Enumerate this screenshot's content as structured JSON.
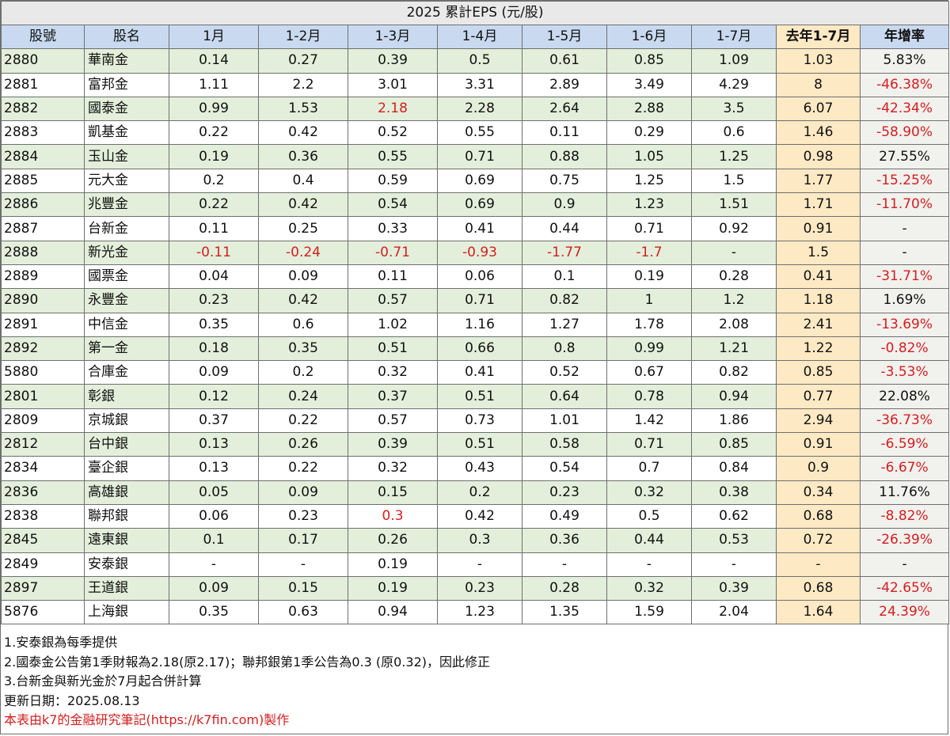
{
  "title": "2025 累計EPS (元/股)",
  "headers": [
    "股號",
    "股名",
    "1月",
    "1-2月",
    "1-3月",
    "1-4月",
    "1-5月",
    "1-6月",
    "1-7月",
    "去年1-7月",
    "年增率"
  ],
  "rows": [
    {
      "code": "2880",
      "name": "華南金",
      "cells": [
        "0.14",
        "0.27",
        "0.39",
        "0.5",
        "0.61",
        "0.85",
        "1.09"
      ],
      "last": "1.03",
      "growth": "5.83%"
    },
    {
      "code": "2881",
      "name": "富邦金",
      "cells": [
        "1.11",
        "2.2",
        "3.01",
        "3.31",
        "2.89",
        "3.49",
        "4.29"
      ],
      "last": "8",
      "growth": "-46.38%"
    },
    {
      "code": "2882",
      "name": "國泰金",
      "cells": [
        "0.99",
        "1.53",
        "2.18",
        "2.28",
        "2.64",
        "2.88",
        "3.5"
      ],
      "last": "6.07",
      "growth": "-42.34%",
      "red_cells": [
        2
      ]
    },
    {
      "code": "2883",
      "name": "凱基金",
      "cells": [
        "0.22",
        "0.42",
        "0.52",
        "0.55",
        "0.11",
        "0.29",
        "0.6"
      ],
      "last": "1.46",
      "growth": "-58.90%"
    },
    {
      "code": "2884",
      "name": "玉山金",
      "cells": [
        "0.19",
        "0.36",
        "0.55",
        "0.71",
        "0.88",
        "1.05",
        "1.25"
      ],
      "last": "0.98",
      "growth": "27.55%"
    },
    {
      "code": "2885",
      "name": "元大金",
      "cells": [
        "0.2",
        "0.4",
        "0.59",
        "0.69",
        "0.75",
        "1.25",
        "1.5"
      ],
      "last": "1.77",
      "growth": "-15.25%"
    },
    {
      "code": "2886",
      "name": "兆豐金",
      "cells": [
        "0.22",
        "0.42",
        "0.54",
        "0.69",
        "0.9",
        "1.23",
        "1.51"
      ],
      "last": "1.71",
      "growth": "-11.70%"
    },
    {
      "code": "2887",
      "name": "台新金",
      "cells": [
        "0.11",
        "0.25",
        "0.33",
        "0.41",
        "0.44",
        "0.71",
        "0.92"
      ],
      "last": "0.91",
      "growth": "-"
    },
    {
      "code": "2888",
      "name": "新光金",
      "cells": [
        "-0.11",
        "-0.24",
        "-0.71",
        "-0.93",
        "-1.77",
        "-1.7",
        "-"
      ],
      "last": "1.5",
      "growth": "-"
    },
    {
      "code": "2889",
      "name": "國票金",
      "cells": [
        "0.04",
        "0.09",
        "0.11",
        "0.06",
        "0.1",
        "0.19",
        "0.28"
      ],
      "last": "0.41",
      "growth": "-31.71%"
    },
    {
      "code": "2890",
      "name": "永豐金",
      "cells": [
        "0.23",
        "0.42",
        "0.57",
        "0.71",
        "0.82",
        "1",
        "1.2"
      ],
      "last": "1.18",
      "growth": "1.69%"
    },
    {
      "code": "2891",
      "name": "中信金",
      "cells": [
        "0.35",
        "0.6",
        "1.02",
        "1.16",
        "1.27",
        "1.78",
        "2.08"
      ],
      "last": "2.41",
      "growth": "-13.69%"
    },
    {
      "code": "2892",
      "name": "第一金",
      "cells": [
        "0.18",
        "0.35",
        "0.51",
        "0.66",
        "0.8",
        "0.99",
        "1.21"
      ],
      "last": "1.22",
      "growth": "-0.82%"
    },
    {
      "code": "5880",
      "name": "合庫金",
      "cells": [
        "0.09",
        "0.2",
        "0.32",
        "0.41",
        "0.52",
        "0.67",
        "0.82"
      ],
      "last": "0.85",
      "growth": "-3.53%"
    },
    {
      "code": "2801",
      "name": "彰銀",
      "cells": [
        "0.12",
        "0.24",
        "0.37",
        "0.51",
        "0.64",
        "0.78",
        "0.94"
      ],
      "last": "0.77",
      "growth": "22.08%"
    },
    {
      "code": "2809",
      "name": "京城銀",
      "cells": [
        "0.37",
        "0.22",
        "0.57",
        "0.73",
        "1.01",
        "1.42",
        "1.86"
      ],
      "last": "2.94",
      "growth": "-36.73%"
    },
    {
      "code": "2812",
      "name": "台中銀",
      "cells": [
        "0.13",
        "0.26",
        "0.39",
        "0.51",
        "0.58",
        "0.71",
        "0.85"
      ],
      "last": "0.91",
      "growth": "-6.59%"
    },
    {
      "code": "2834",
      "name": "臺企銀",
      "cells": [
        "0.13",
        "0.22",
        "0.32",
        "0.43",
        "0.54",
        "0.7",
        "0.84"
      ],
      "last": "0.9",
      "growth": "-6.67%"
    },
    {
      "code": "2836",
      "name": "高雄銀",
      "cells": [
        "0.05",
        "0.09",
        "0.15",
        "0.2",
        "0.23",
        "0.32",
        "0.38"
      ],
      "last": "0.34",
      "growth": "11.76%"
    },
    {
      "code": "2838",
      "name": "聯邦銀",
      "cells": [
        "0.06",
        "0.23",
        "0.3",
        "0.42",
        "0.49",
        "0.5",
        "0.62"
      ],
      "last": "0.68",
      "growth": "-8.82%",
      "red_cells": [
        2
      ]
    },
    {
      "code": "2845",
      "name": "遠東銀",
      "cells": [
        "0.1",
        "0.17",
        "0.26",
        "0.3",
        "0.36",
        "0.44",
        "0.53"
      ],
      "last": "0.72",
      "growth": "-26.39%"
    },
    {
      "code": "2849",
      "name": "安泰銀",
      "cells": [
        "-",
        "-",
        "0.19",
        "-",
        "-",
        "-",
        "-"
      ],
      "last": "-",
      "growth": "-"
    },
    {
      "code": "2897",
      "name": "王道銀",
      "cells": [
        "0.09",
        "0.15",
        "0.19",
        "0.23",
        "0.28",
        "0.32",
        "0.39"
      ],
      "last": "0.68",
      "growth": "-42.65%"
    },
    {
      "code": "5876",
      "name": "上海銀",
      "cells": [
        "0.35",
        "0.63",
        "0.94",
        "1.23",
        "1.35",
        "1.59",
        "2.04"
      ],
      "last": "1.64",
      "growth": "24.39%",
      "red_growth": true
    }
  ],
  "notes": [
    "1.安泰銀為每季提供",
    "2.國泰金公告第1季財報為2.18(原2.17)；聯邦銀第1季公告為0.3 (原0.32)，因此修正",
    "3.台新金與新光金於7月起合併計算",
    "更新日期：2025.08.13"
  ],
  "credit": "本表由k7的金融研究筆記(https://k7fin.com)製作",
  "colors": {
    "header_bg": "#c9daf0",
    "row_green": "#e3efda",
    "last_year_col": "#fde9c4",
    "negative_text": "#d21f1f"
  }
}
